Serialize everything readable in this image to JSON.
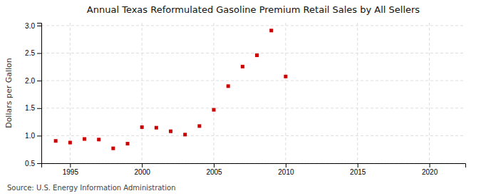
{
  "chart_data": {
    "type": "scatter",
    "title": "Annual Texas Reformulated Gasoline Premium Retail Sales by All Sellers",
    "ylabel": "Dollars per Gallon",
    "annotations": [
      "Source: U.S. Energy Information Administration"
    ],
    "x": [
      1994,
      1995,
      1996,
      1997,
      1998,
      1999,
      2000,
      2001,
      2002,
      2003,
      2004,
      2005,
      2006,
      2007,
      2008,
      2009,
      2010
    ],
    "values": [
      0.905,
      0.875,
      0.94,
      0.93,
      0.77,
      0.855,
      1.155,
      1.145,
      1.08,
      1.02,
      1.175,
      1.47,
      1.9,
      2.255,
      2.46,
      2.91,
      2.075
    ],
    "color": "#cc0000",
    "marker": "square",
    "xlim": [
      1993.0,
      2022.5
    ],
    "ylim": [
      0.5,
      3.05
    ],
    "xticks": [
      1995,
      2000,
      2005,
      2010,
      2015,
      2020
    ],
    "yticks": [
      0.5,
      {
        "value": 1.0,
        "label": "1.0"
      },
      1.5,
      {
        "value": 2.0,
        "label": "2.0"
      },
      2.5,
      {
        "value": 3.0,
        "label": "3.0"
      }
    ],
    "grid": true
  }
}
